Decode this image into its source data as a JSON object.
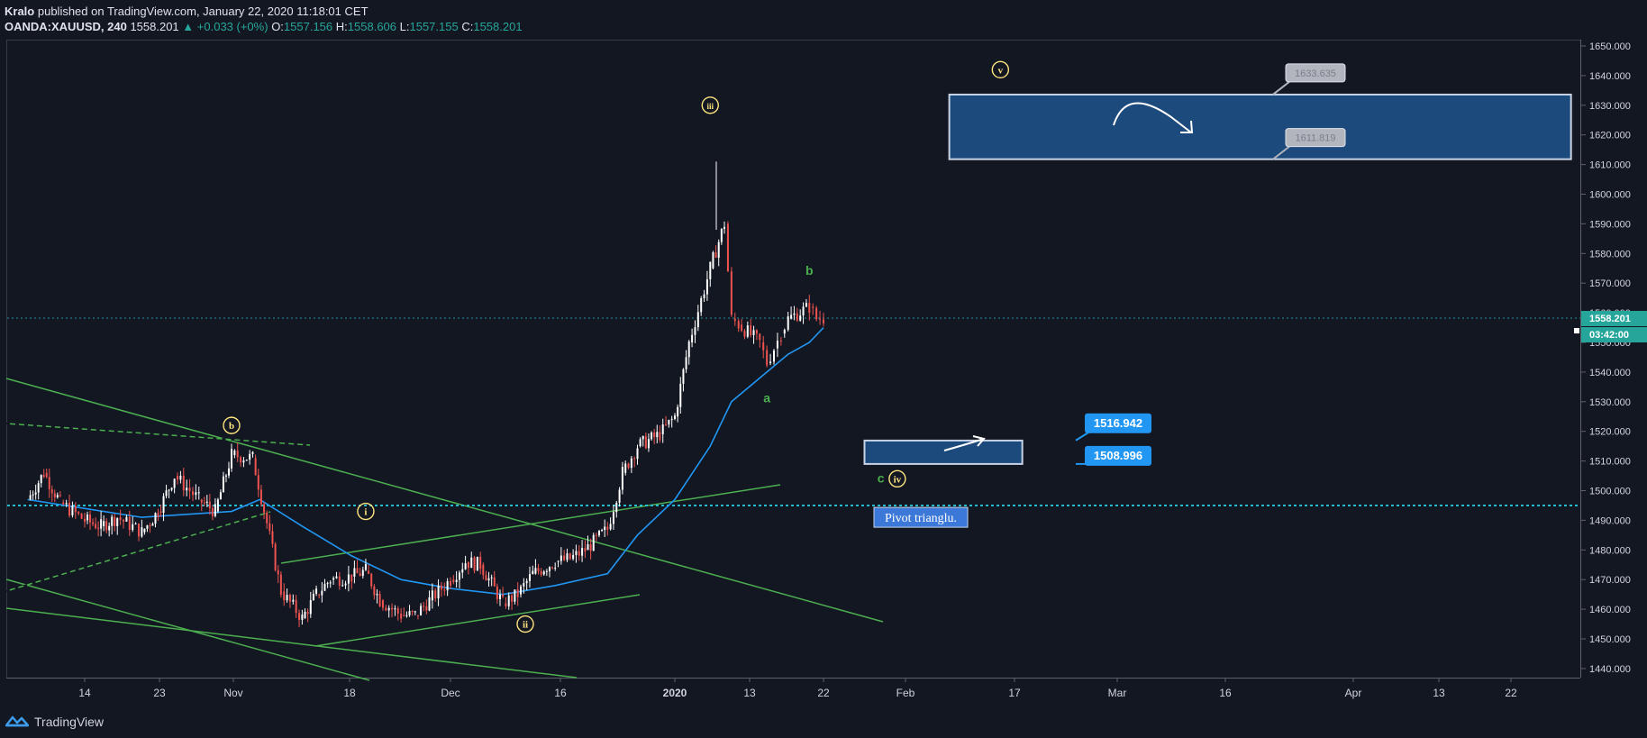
{
  "header": {
    "author": "Kralo",
    "published_text": "published on TradingView.com, January 22, 2020 11:18:01 CET",
    "symbol": "OANDA:XAUUSD, 240",
    "price": "1558.201",
    "change": "▲ +0.033 (+0%)",
    "o_label": "O:",
    "o_value": "1557.156",
    "h_label": "H:",
    "h_value": "1558.606",
    "l_label": "L:",
    "l_value": "1557.155",
    "c_label": "C:",
    "c_value": "1558.201"
  },
  "footer": {
    "brand": "TradingView"
  },
  "colors": {
    "background": "#131722",
    "up_candle": "#ffffff",
    "down_candle": "#ef5350",
    "trendline": "#4caf50",
    "moving_average": "#2196f3",
    "price_line": "#26c6da",
    "zone_fill": "#1c4a7c",
    "label_blue": "#2196f3",
    "wave_label": "#ffe57f"
  },
  "chart_data": {
    "type": "candlestick",
    "symbol": "XAUUSD",
    "timeframe": "240",
    "ylim": [
      1435,
      1653
    ],
    "y_ticks": [
      "1650.000",
      "1640.000",
      "1630.000",
      "1620.000",
      "1610.000",
      "1600.000",
      "1590.000",
      "1580.000",
      "1570.000",
      "1560.000",
      "1550.000",
      "1540.000",
      "1530.000",
      "1520.000",
      "1510.000",
      "1500.000",
      "1490.000",
      "1480.000",
      "1470.000",
      "1460.000",
      "1450.000",
      "1440.000"
    ],
    "x_ticks": [
      "14",
      "23",
      "Nov",
      "18",
      "Dec",
      "16",
      "2020",
      "13",
      "22",
      "Feb",
      "17",
      "Mar",
      "16",
      "Apr",
      "13",
      "22"
    ],
    "last_price_label": "1558.201",
    "countdown_label": "03:42:00",
    "close_path": [
      [
        "2019-10-07",
        1497
      ],
      [
        "2019-10-09",
        1506
      ],
      [
        "2019-10-11",
        1496
      ],
      [
        "2019-10-14",
        1490
      ],
      [
        "2019-10-16",
        1488
      ],
      [
        "2019-10-18",
        1491
      ],
      [
        "2019-10-21",
        1486
      ],
      [
        "2019-10-23",
        1493
      ],
      [
        "2019-10-25",
        1505
      ],
      [
        "2019-10-28",
        1497
      ],
      [
        "2019-10-30",
        1493
      ],
      [
        "2019-11-01",
        1512
      ],
      [
        "2019-11-04",
        1511
      ],
      [
        "2019-11-06",
        1489
      ],
      [
        "2019-11-08",
        1466
      ],
      [
        "2019-11-11",
        1457
      ],
      [
        "2019-11-13",
        1465
      ],
      [
        "2019-11-15",
        1470
      ],
      [
        "2019-11-18",
        1471
      ],
      [
        "2019-11-20",
        1473
      ],
      [
        "2019-11-22",
        1463
      ],
      [
        "2019-11-25",
        1458
      ],
      [
        "2019-11-27",
        1458
      ],
      [
        "2019-11-29",
        1463
      ],
      [
        "2019-12-02",
        1470
      ],
      [
        "2019-12-04",
        1476
      ],
      [
        "2019-12-06",
        1475
      ],
      [
        "2019-12-09",
        1462
      ],
      [
        "2019-12-11",
        1465
      ],
      [
        "2019-12-13",
        1472
      ],
      [
        "2019-12-16",
        1476
      ],
      [
        "2019-12-18",
        1477
      ],
      [
        "2019-12-20",
        1480
      ],
      [
        "2019-12-23",
        1487
      ],
      [
        "2019-12-25",
        1506
      ],
      [
        "2019-12-27",
        1515
      ],
      [
        "2019-12-30",
        1519
      ],
      [
        "2020-01-01",
        1525
      ],
      [
        "2020-01-03",
        1550
      ],
      [
        "2020-01-06",
        1575
      ],
      [
        "2020-01-08",
        1590
      ],
      [
        "2020-01-09",
        1558
      ],
      [
        "2020-01-10",
        1556
      ],
      [
        "2020-01-13",
        1550
      ],
      [
        "2020-01-14",
        1543
      ],
      [
        "2020-01-15",
        1548
      ],
      [
        "2020-01-16",
        1553
      ],
      [
        "2020-01-17",
        1558
      ],
      [
        "2020-01-20",
        1562
      ],
      [
        "2020-01-21",
        1558
      ],
      [
        "2020-01-22",
        1558.2
      ]
    ],
    "moving_average_path": [
      [
        "2019-10-07",
        1497
      ],
      [
        "2019-10-21",
        1491
      ],
      [
        "2019-11-01",
        1493
      ],
      [
        "2019-11-05",
        1497
      ],
      [
        "2019-11-11",
        1488
      ],
      [
        "2019-11-18",
        1478
      ],
      [
        "2019-11-25",
        1470
      ],
      [
        "2019-12-02",
        1467
      ],
      [
        "2019-12-09",
        1465
      ],
      [
        "2019-12-16",
        1468
      ],
      [
        "2019-12-23",
        1472
      ],
      [
        "2019-12-27",
        1485
      ],
      [
        "2020-01-01",
        1497
      ],
      [
        "2020-01-06",
        1515
      ],
      [
        "2020-01-09",
        1530
      ],
      [
        "2020-01-14",
        1540
      ],
      [
        "2020-01-17",
        1546
      ],
      [
        "2020-01-20",
        1550
      ],
      [
        "2020-01-22",
        1555
      ]
    ],
    "zones": [
      {
        "name": "wave-v-target-zone",
        "from": "2020-02-07",
        "to": "2020-04-30",
        "top": 1633.6,
        "bottom": 1611.8
      },
      {
        "name": "wave-iv-zone",
        "from": "2020-01-27",
        "to": "2020-02-17",
        "top": 1516.9,
        "bottom": 1509.0
      }
    ],
    "price_callouts": [
      {
        "name": "zone-top-callout",
        "text": "1633.635",
        "price": 1633.635,
        "style": "gray"
      },
      {
        "name": "zone-bottom-callout",
        "text": "1611.819",
        "price": 1611.819,
        "style": "gray"
      },
      {
        "name": "iv-top-callout",
        "text": "1516.942",
        "price": 1516.942,
        "style": "blue"
      },
      {
        "name": "iv-bottom-callout",
        "text": "1508.996",
        "price": 1508.996,
        "style": "blue"
      }
    ],
    "horizontal_lines": [
      {
        "name": "last-price-line",
        "price": 1558.2
      },
      {
        "name": "pivot-line",
        "price": 1495
      }
    ],
    "wave_labels": [
      {
        "text": "ⓑ",
        "date": "2019-11-01",
        "price": 1522
      },
      {
        "text": "ⓘ",
        "date": "2019-11-20",
        "price": 1493
      },
      {
        "text": "ⓘⓘ",
        "date": "2019-12-12",
        "price": 1455
      },
      {
        "text": "ⓘⓘⓘ",
        "date": "2020-01-06",
        "price": 1630
      },
      {
        "text": "ⓥ",
        "date": "2020-02-14",
        "price": 1642
      },
      {
        "text": "ⓘⓥ",
        "date": "2020-02-01",
        "price": 1505
      }
    ],
    "letter_labels": [
      {
        "text": "b",
        "date": "2020-01-20",
        "price": 1574
      },
      {
        "text": "a",
        "date": "2020-01-14",
        "price": 1531
      },
      {
        "text": "c",
        "date": "2020-01-29",
        "price": 1504
      }
    ],
    "circle_labels": [
      {
        "text": "b",
        "date": "2019-11-01",
        "price": 1522
      },
      {
        "text": "i",
        "date": "2019-11-20",
        "price": 1493
      },
      {
        "text": "ii",
        "date": "2019-12-12",
        "price": 1455
      },
      {
        "text": "iii",
        "date": "2020-01-06",
        "price": 1630
      },
      {
        "text": "v",
        "date": "2020-02-14",
        "price": 1642
      },
      {
        "text": "iv",
        "date": "2020-01-31",
        "price": 1504
      }
    ],
    "note": {
      "text": "Pivot trianglu.",
      "date": "2020-01-29",
      "price": 1491
    }
  }
}
